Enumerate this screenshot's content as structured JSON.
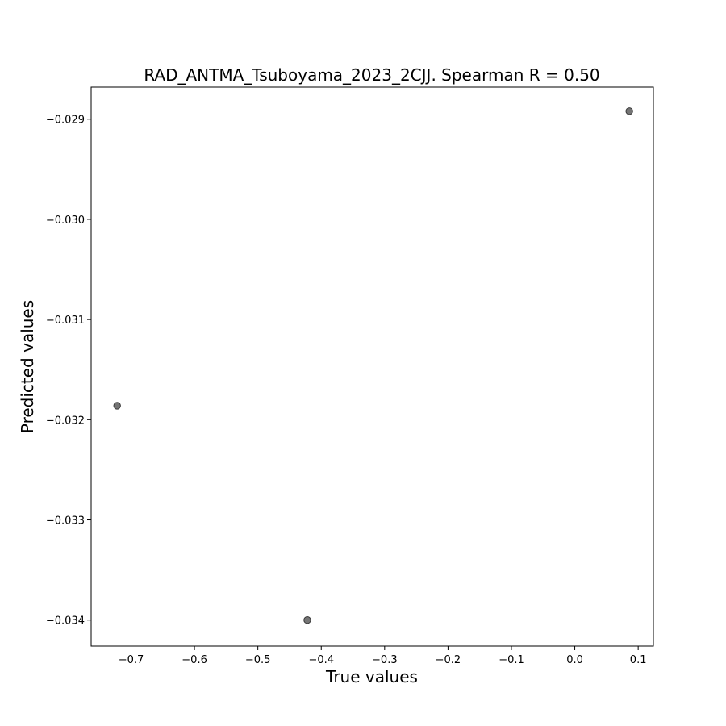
{
  "chart_data": {
    "type": "scatter",
    "title": "RAD_ANTMA_Tsuboyama_2023_2CJJ. Spearman R = 0.50",
    "xlabel": "True values",
    "ylabel": "Predicted values",
    "xlim": [
      -0.763,
      0.124
    ],
    "ylim": [
      -0.03426,
      -0.02868
    ],
    "x_ticks": [
      -0.7,
      -0.6,
      -0.5,
      -0.4,
      -0.3,
      -0.2,
      -0.1,
      0.0,
      0.1
    ],
    "x_tick_labels": [
      "−0.7",
      "−0.6",
      "−0.5",
      "−0.4",
      "−0.3",
      "−0.2",
      "−0.1",
      "0.0",
      "0.1"
    ],
    "y_ticks": [
      -0.029,
      -0.03,
      -0.031,
      -0.032,
      -0.033,
      -0.034
    ],
    "y_tick_labels": [
      "−0.029",
      "−0.030",
      "−0.031",
      "−0.032",
      "−0.033",
      "−0.034"
    ],
    "grid": false,
    "point_color": "#666666",
    "points": [
      {
        "x": -0.722,
        "y": -0.03186
      },
      {
        "x": -0.422,
        "y": -0.034
      },
      {
        "x": 0.086,
        "y": -0.02892
      }
    ]
  }
}
